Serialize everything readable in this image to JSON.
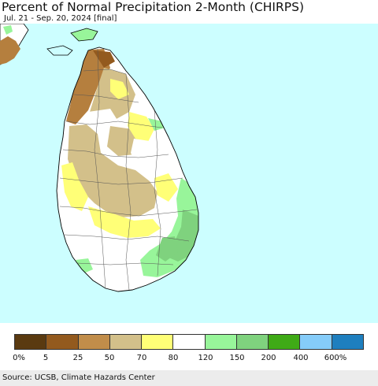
{
  "header": {
    "title": "Percent of Normal Precipitation 2-Month (CHIRPS)",
    "subtitle": "Jul. 21 - Sep. 20, 2024 [final]"
  },
  "map": {
    "region": "Sri Lanka",
    "ocean_color": "#ccfeff",
    "land_outline_color": "#000000"
  },
  "legend": {
    "colors": [
      "#5a3a10",
      "#935a1e",
      "#c18d4a",
      "#d3c08a",
      "#ffff77",
      "#ffffff",
      "#98f59a",
      "#7fd27e",
      "#3faa16",
      "#85ccf9",
      "#1e7fbf"
    ],
    "tick_labels": [
      "0%",
      "5",
      "25",
      "50",
      "70",
      "80",
      "120",
      "150",
      "200",
      "400",
      "600%"
    ]
  },
  "footer": {
    "source": "Source: UCSB, Climate Hazards Center"
  }
}
